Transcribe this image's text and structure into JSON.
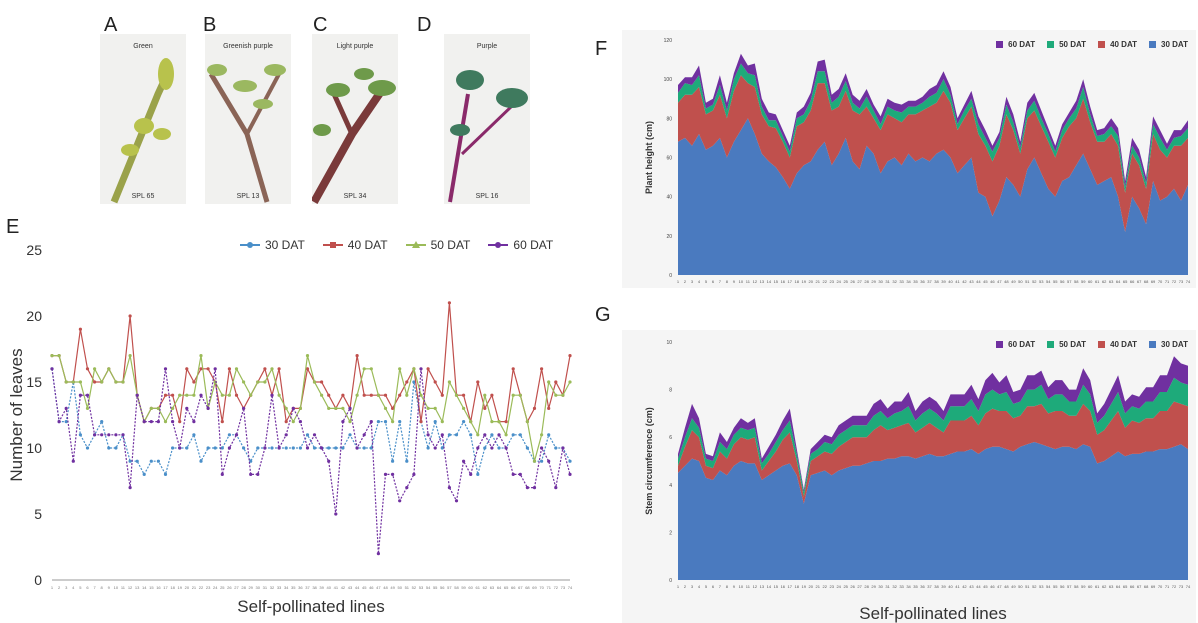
{
  "panel_letters": {
    "a": "A",
    "b": "B",
    "c": "C",
    "d": "D",
    "e": "E",
    "f": "F",
    "g": "G"
  },
  "photos": [
    {
      "title": "Green",
      "label": "SPL 65",
      "stem": "#9aa24a",
      "leaf": "#b8c24c"
    },
    {
      "title": "Greenish purple",
      "label": "SPL 13",
      "stem": "#8a6456",
      "leaf": "#9bb860"
    },
    {
      "title": "Light purple",
      "label": "SPL 34",
      "stem": "#7a3a3a",
      "leaf": "#6e9a4a"
    },
    {
      "title": "Purple",
      "label": "SPL 16",
      "stem": "#8a2a6a",
      "leaf": "#3f7a5e"
    }
  ],
  "chart_data": [
    {
      "panel": "E",
      "type": "line",
      "xlabel": "Self-pollinated lines",
      "ylabel": "Number of leaves",
      "ylim": [
        0,
        25
      ],
      "yticks": [
        "0",
        "5",
        "10",
        "15",
        "20",
        "25"
      ],
      "grid": false,
      "legend": "top-right",
      "series": [
        {
          "name": "30 DAT",
          "color": "#4a8fc9",
          "values": [
            16,
            12,
            12,
            15,
            11,
            10,
            11,
            12,
            10,
            10,
            11,
            9,
            9,
            8,
            9,
            9,
            8,
            10,
            10,
            10,
            11,
            9,
            10,
            10,
            10,
            11,
            11,
            10,
            9,
            10,
            10,
            10,
            10,
            10,
            10,
            10,
            11,
            10,
            10,
            10,
            10,
            10,
            11,
            10,
            10,
            10,
            12,
            12,
            9,
            12,
            9,
            15,
            12,
            10,
            12,
            10,
            11,
            11,
            12,
            11,
            8,
            10,
            11,
            10,
            10,
            11,
            11,
            10,
            9,
            9,
            11,
            10,
            10,
            9
          ]
        },
        {
          "name": "40 DAT",
          "color": "#c0504d",
          "values": [
            17,
            17,
            15,
            15,
            19,
            16,
            15,
            15,
            16,
            15,
            15,
            20,
            14,
            12,
            13,
            13,
            14,
            14,
            12,
            16,
            15,
            16,
            16,
            15,
            12,
            16,
            14,
            13,
            14,
            15,
            16,
            14,
            16,
            12,
            13,
            13,
            16,
            15,
            15,
            14,
            13,
            14,
            13,
            17,
            14,
            14,
            14,
            14,
            13,
            14,
            15,
            16,
            12,
            16,
            15,
            14,
            21,
            14,
            14,
            12,
            15,
            13,
            14,
            12,
            12,
            16,
            14,
            12,
            13,
            16,
            13,
            15,
            14,
            17
          ]
        },
        {
          "name": "50 DAT",
          "color": "#9bbb59",
          "values": [
            17,
            17,
            15,
            15,
            15,
            13,
            16,
            15,
            16,
            15,
            15,
            17,
            14,
            12,
            13,
            13,
            12,
            13,
            14,
            14,
            14,
            17,
            13,
            15,
            14,
            14,
            16,
            15,
            14,
            15,
            15,
            16,
            14,
            13,
            12,
            13,
            17,
            15,
            14,
            13,
            13,
            13,
            12,
            14,
            16,
            16,
            14,
            13,
            12,
            16,
            14,
            16,
            14,
            13,
            13,
            12,
            15,
            14,
            13,
            12,
            11,
            14,
            12,
            12,
            11,
            14,
            14,
            12,
            9,
            11,
            15,
            14,
            14,
            15
          ]
        },
        {
          "name": "60 DAT",
          "color": "#7030a0",
          "values": [
            16,
            12,
            13,
            9,
            14,
            14,
            11,
            11,
            11,
            11,
            11,
            7,
            14,
            12,
            12,
            12,
            16,
            12,
            10,
            13,
            12,
            14,
            13,
            16,
            8,
            10,
            11,
            13,
            8,
            8,
            10,
            14,
            10,
            11,
            13,
            12,
            10,
            11,
            10,
            9,
            5,
            12,
            13,
            10,
            11,
            12,
            2,
            8,
            8,
            6,
            7,
            8,
            16,
            11,
            10,
            11,
            7,
            6,
            9,
            8,
            10,
            11,
            10,
            11,
            10,
            8,
            8,
            7,
            7,
            10,
            9,
            7,
            10,
            8
          ]
        }
      ]
    },
    {
      "panel": "F",
      "type": "area",
      "stacked": true,
      "xlabel": "",
      "ylabel": "Plant height (cm)",
      "ylim": [
        0,
        120
      ],
      "yticks": [
        "0",
        "20",
        "40",
        "60",
        "80",
        "100",
        "120"
      ],
      "legend": "top-right",
      "series": [
        {
          "name": "30 DAT",
          "color": "#4a7abf",
          "values": [
            68,
            70,
            66,
            72,
            64,
            66,
            70,
            60,
            68,
            74,
            80,
            72,
            62,
            58,
            55,
            50,
            44,
            52,
            56,
            58,
            64,
            68,
            56,
            62,
            70,
            58,
            54,
            66,
            62,
            52,
            58,
            60,
            56,
            62,
            58,
            60,
            58,
            62,
            64,
            60,
            52,
            56,
            60,
            42,
            40,
            30,
            38,
            50,
            46,
            40,
            54,
            60,
            52,
            44,
            40,
            48,
            50,
            56,
            62,
            54,
            46,
            48,
            50,
            40,
            22,
            40,
            34,
            26,
            48,
            38,
            40,
            44,
            38,
            46
          ]
        },
        {
          "name": "40 DAT",
          "color": "#c0504d",
          "values": [
            20,
            22,
            26,
            24,
            18,
            18,
            22,
            20,
            26,
            28,
            18,
            24,
            20,
            18,
            20,
            18,
            16,
            24,
            22,
            26,
            34,
            30,
            28,
            24,
            24,
            26,
            28,
            20,
            18,
            22,
            24,
            20,
            22,
            20,
            24,
            24,
            28,
            26,
            30,
            28,
            22,
            24,
            26,
            30,
            26,
            28,
            28,
            32,
            28,
            22,
            26,
            24,
            24,
            24,
            20,
            22,
            26,
            24,
            28,
            24,
            22,
            20,
            22,
            26,
            20,
            22,
            22,
            18,
            24,
            26,
            20,
            22,
            28,
            24
          ]
        },
        {
          "name": "50 DAT",
          "color": "#1eaa7a",
          "values": [
            5,
            6,
            5,
            6,
            3,
            3,
            5,
            4,
            6,
            6,
            5,
            6,
            4,
            3,
            4,
            3,
            3,
            4,
            4,
            5,
            6,
            6,
            4,
            5,
            5,
            4,
            3,
            5,
            4,
            3,
            4,
            4,
            5,
            4,
            4,
            4,
            5,
            5,
            6,
            4,
            3,
            4,
            4,
            5,
            4,
            5,
            4,
            5,
            4,
            3,
            4,
            5,
            4,
            4,
            3,
            4,
            4,
            5,
            6,
            4,
            3,
            4,
            4,
            5,
            3,
            4,
            4,
            3,
            5,
            6,
            4,
            4,
            5,
            5
          ]
        },
        {
          "name": "60 DAT",
          "color": "#7030a0",
          "values": [
            4,
            3,
            4,
            5,
            3,
            3,
            5,
            4,
            3,
            5,
            4,
            6,
            4,
            4,
            3,
            3,
            3,
            3,
            4,
            4,
            5,
            6,
            4,
            4,
            4,
            4,
            4,
            4,
            3,
            4,
            4,
            4,
            4,
            3,
            3,
            3,
            4,
            4,
            4,
            4,
            3,
            3,
            4,
            4,
            4,
            3,
            3,
            4,
            4,
            3,
            4,
            4,
            4,
            3,
            3,
            3,
            3,
            4,
            4,
            4,
            3,
            3,
            4,
            4,
            3,
            4,
            4,
            3,
            4,
            4,
            3,
            4,
            3,
            4
          ]
        }
      ]
    },
    {
      "panel": "G",
      "type": "area",
      "stacked": true,
      "xlabel": "Self-pollinated lines",
      "ylabel": "Stem circumference (cm)",
      "ylim": [
        0,
        10
      ],
      "yticks": [
        "0",
        "2",
        "4",
        "6",
        "8",
        "10"
      ],
      "legend": "top-right",
      "series": [
        {
          "name": "30 DAT",
          "color": "#4a7abf",
          "values": [
            4.5,
            4.8,
            5.1,
            5.0,
            4.3,
            4.2,
            4.6,
            4.4,
            4.8,
            5.0,
            4.9,
            4.9,
            4.2,
            4.4,
            4.6,
            4.8,
            4.9,
            4.4,
            3.2,
            4.4,
            4.5,
            4.6,
            4.4,
            4.6,
            4.7,
            4.8,
            4.8,
            4.9,
            5.0,
            5.0,
            5.1,
            5.1,
            5.2,
            5.2,
            5.1,
            5.2,
            5.3,
            5.2,
            5.2,
            5.3,
            5.4,
            5.4,
            5.5,
            5.3,
            5.5,
            5.6,
            5.6,
            5.5,
            5.4,
            5.6,
            5.7,
            5.8,
            5.7,
            5.6,
            5.5,
            5.6,
            5.6,
            5.5,
            5.7,
            5.6,
            4.9,
            5.0,
            5.2,
            5.4,
            5.2,
            5.3,
            5.3,
            5.4,
            5.4,
            5.5,
            5.5,
            5.6,
            5.7,
            5.5
          ]
        },
        {
          "name": "40 DAT",
          "color": "#c0504d",
          "values": [
            0.3,
            0.8,
            1.2,
            1.0,
            0.5,
            0.5,
            0.8,
            0.7,
            0.9,
            1.0,
            1.0,
            1.1,
            0.4,
            0.6,
            0.8,
            1.1,
            1.3,
            0.6,
            0.3,
            0.6,
            0.7,
            0.8,
            0.9,
            1.0,
            1.1,
            1.2,
            1.2,
            1.1,
            1.3,
            1.5,
            1.2,
            1.3,
            1.3,
            1.4,
            1.1,
            1.2,
            1.3,
            1.2,
            1.0,
            1.4,
            1.3,
            1.3,
            1.4,
            1.2,
            1.5,
            1.6,
            1.5,
            1.6,
            1.4,
            1.3,
            1.6,
            1.5,
            1.7,
            1.4,
            1.6,
            1.5,
            1.3,
            1.4,
            1.7,
            1.5,
            1.2,
            1.3,
            1.5,
            1.7,
            1.2,
            1.4,
            1.3,
            1.4,
            1.4,
            1.6,
            1.6,
            1.9,
            1.7,
            1.8
          ]
        },
        {
          "name": "50 DAT",
          "color": "#1eaa7a",
          "values": [
            0.3,
            0.4,
            0.5,
            0.4,
            0.3,
            0.3,
            0.4,
            0.4,
            0.4,
            0.4,
            0.4,
            0.4,
            0.3,
            0.3,
            0.4,
            0.4,
            0.5,
            0.3,
            0.2,
            0.3,
            0.3,
            0.4,
            0.4,
            0.5,
            0.5,
            0.5,
            0.5,
            0.5,
            0.6,
            0.6,
            0.5,
            0.6,
            0.6,
            0.7,
            0.5,
            0.6,
            0.6,
            0.6,
            0.5,
            0.6,
            0.6,
            0.6,
            0.7,
            0.6,
            0.8,
            0.8,
            0.7,
            0.8,
            0.6,
            0.6,
            0.7,
            0.7,
            0.8,
            0.6,
            0.7,
            0.7,
            0.6,
            0.6,
            0.8,
            0.7,
            0.5,
            0.6,
            0.7,
            0.8,
            0.6,
            0.6,
            0.6,
            0.7,
            0.7,
            0.8,
            0.8,
            1.0,
            0.9,
            0.9
          ]
        },
        {
          "name": "60 DAT",
          "color": "#7030a0",
          "values": [
            0.2,
            0.4,
            0.6,
            0.4,
            0.2,
            0.2,
            0.4,
            0.3,
            0.3,
            0.4,
            0.3,
            0.4,
            0.2,
            0.3,
            0.3,
            0.4,
            0.5,
            0.2,
            0.1,
            0.2,
            0.3,
            0.3,
            0.3,
            0.4,
            0.4,
            0.4,
            0.4,
            0.4,
            0.5,
            0.5,
            0.4,
            0.5,
            0.4,
            0.6,
            0.4,
            0.5,
            0.5,
            0.5,
            0.4,
            0.5,
            0.5,
            0.5,
            0.6,
            0.5,
            0.6,
            0.7,
            0.5,
            0.7,
            0.5,
            0.5,
            0.6,
            0.6,
            0.6,
            0.5,
            0.6,
            0.6,
            0.5,
            0.5,
            0.7,
            0.6,
            0.4,
            0.5,
            0.6,
            0.7,
            0.5,
            0.5,
            0.5,
            0.6,
            0.6,
            0.7,
            0.7,
            0.9,
            0.8,
            0.8
          ]
        }
      ]
    }
  ]
}
